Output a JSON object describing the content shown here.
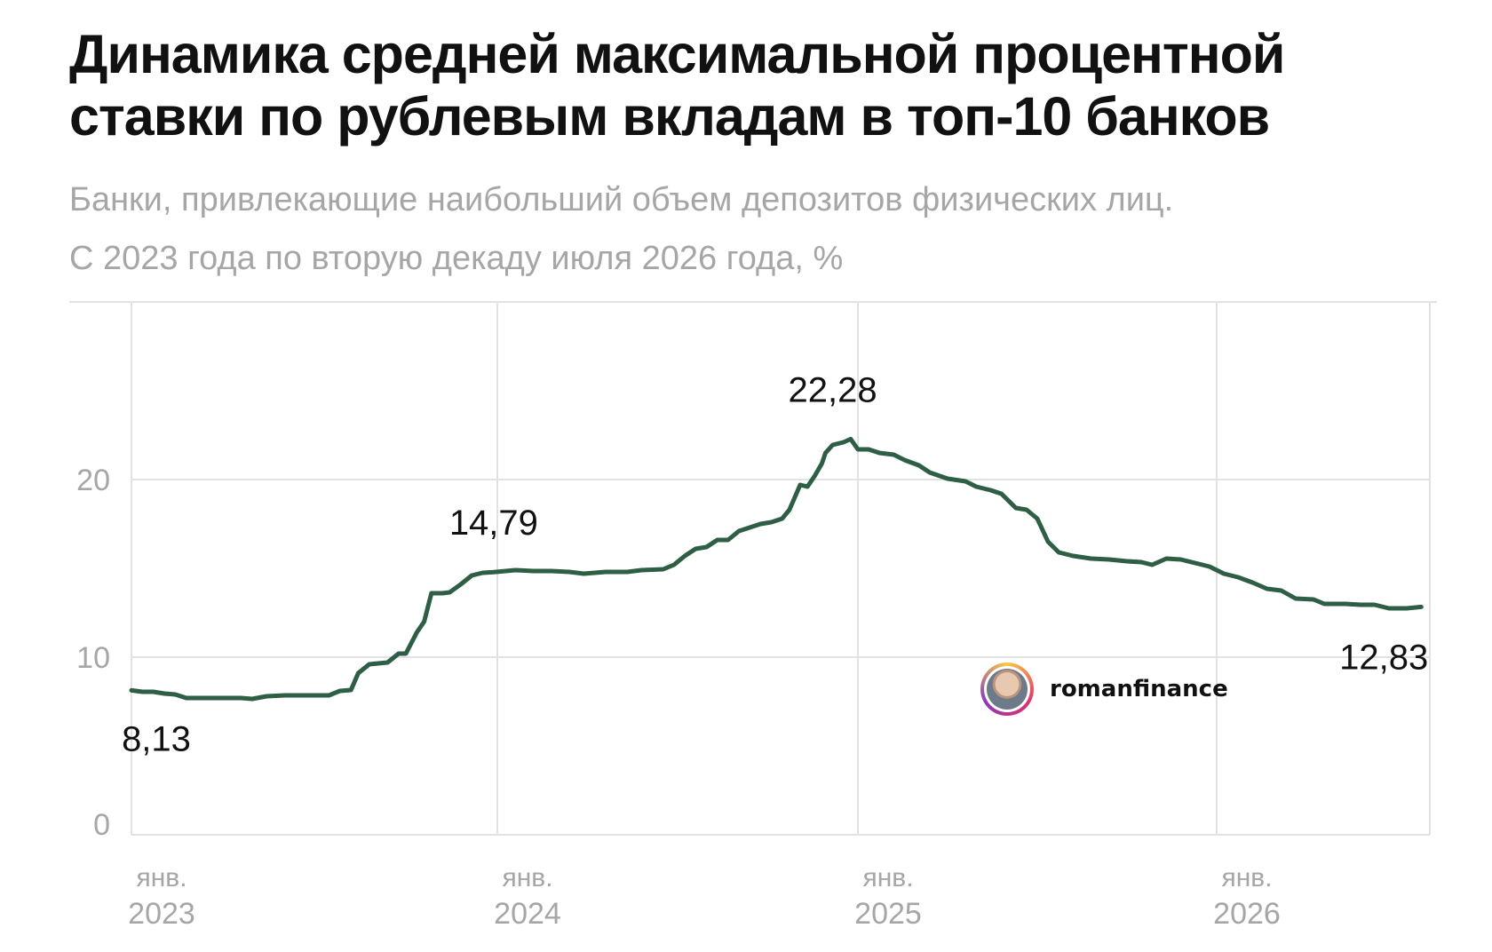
{
  "title": "Динамика средней максимальной процентной ставки по рублевым вкладам в топ-10 банков",
  "subtitle_line1": "Банки, привлекающие наибольший объем депозитов физических лиц.",
  "subtitle_line2": "С 2023 года по вторую декаду июля 2026 года, %",
  "watermark": {
    "text": "romanfinance",
    "icon": "avatar-icon"
  },
  "colors": {
    "line": "#2e5e44",
    "grid": "#e2e2e2",
    "axis_text": "#a6a6a6",
    "label_text": "#111111"
  },
  "chart_data": {
    "type": "line",
    "title": "Динамика средней максимальной процентной ставки по рублевым вкладам в топ-10 банков",
    "xlabel": "",
    "ylabel": "",
    "ylim": [
      0,
      25
    ],
    "yticks": [
      0,
      10,
      20
    ],
    "grid": true,
    "xticks": [
      {
        "x": 2023.0,
        "line1": "янв.",
        "line2": "2023"
      },
      {
        "x": 2024.0,
        "line1": "янв.",
        "line2": "2024"
      },
      {
        "x": 2025.0,
        "line1": "янв.",
        "line2": "2025"
      },
      {
        "x": 2026.0,
        "line1": "янв.",
        "line2": "2026"
      }
    ],
    "xlim": [
      2023.0,
      2026.57
    ],
    "annotations": [
      {
        "x": 2023.0,
        "y": 8.13,
        "text": "8,13",
        "pos": "below"
      },
      {
        "x": 2023.99,
        "y": 14.79,
        "text": "14,79",
        "pos": "above"
      },
      {
        "x": 2024.93,
        "y": 22.28,
        "text": "22,28",
        "pos": "above"
      },
      {
        "x": 2026.57,
        "y": 12.83,
        "text": "12,83",
        "pos": "below-left"
      }
    ],
    "series": [
      {
        "points": [
          [
            2023.0,
            8.13
          ],
          [
            2023.03,
            8.05
          ],
          [
            2023.06,
            8.05
          ],
          [
            2023.09,
            7.95
          ],
          [
            2023.12,
            7.9
          ],
          [
            2023.15,
            7.7
          ],
          [
            2023.2,
            7.7
          ],
          [
            2023.26,
            7.7
          ],
          [
            2023.3,
            7.7
          ],
          [
            2023.33,
            7.65
          ],
          [
            2023.37,
            7.8
          ],
          [
            2023.42,
            7.85
          ],
          [
            2023.48,
            7.85
          ],
          [
            2023.54,
            7.85
          ],
          [
            2023.57,
            8.1
          ],
          [
            2023.6,
            8.15
          ],
          [
            2023.62,
            9.1
          ],
          [
            2023.65,
            9.6
          ],
          [
            2023.7,
            9.7
          ],
          [
            2023.73,
            10.2
          ],
          [
            2023.75,
            10.2
          ],
          [
            2023.78,
            11.4
          ],
          [
            2023.8,
            12.0
          ],
          [
            2023.82,
            13.6
          ],
          [
            2023.85,
            13.6
          ],
          [
            2023.87,
            13.65
          ],
          [
            2023.9,
            14.1
          ],
          [
            2023.93,
            14.6
          ],
          [
            2023.96,
            14.75
          ],
          [
            2023.99,
            14.79
          ],
          [
            2024.05,
            14.9
          ],
          [
            2024.1,
            14.85
          ],
          [
            2024.15,
            14.85
          ],
          [
            2024.2,
            14.8
          ],
          [
            2024.24,
            14.7
          ],
          [
            2024.3,
            14.8
          ],
          [
            2024.36,
            14.8
          ],
          [
            2024.4,
            14.9
          ],
          [
            2024.46,
            14.95
          ],
          [
            2024.49,
            15.2
          ],
          [
            2024.52,
            15.7
          ],
          [
            2024.55,
            16.1
          ],
          [
            2024.58,
            16.2
          ],
          [
            2024.61,
            16.6
          ],
          [
            2024.64,
            16.6
          ],
          [
            2024.67,
            17.1
          ],
          [
            2024.7,
            17.3
          ],
          [
            2024.73,
            17.5
          ],
          [
            2024.76,
            17.6
          ],
          [
            2024.79,
            17.8
          ],
          [
            2024.81,
            18.3
          ],
          [
            2024.84,
            19.7
          ],
          [
            2024.86,
            19.6
          ],
          [
            2024.88,
            20.2
          ],
          [
            2024.9,
            20.9
          ],
          [
            2024.91,
            21.5
          ],
          [
            2024.93,
            21.95
          ],
          [
            2024.96,
            22.1
          ],
          [
            2024.98,
            22.28
          ],
          [
            2025.0,
            21.7
          ],
          [
            2025.03,
            21.7
          ],
          [
            2025.06,
            21.5
          ],
          [
            2025.1,
            21.4
          ],
          [
            2025.13,
            21.1
          ],
          [
            2025.17,
            20.8
          ],
          [
            2025.2,
            20.4
          ],
          [
            2025.25,
            20.05
          ],
          [
            2025.3,
            19.9
          ],
          [
            2025.33,
            19.6
          ],
          [
            2025.37,
            19.4
          ],
          [
            2025.4,
            19.2
          ],
          [
            2025.44,
            18.4
          ],
          [
            2025.47,
            18.3
          ],
          [
            2025.5,
            17.8
          ],
          [
            2025.53,
            16.5
          ],
          [
            2025.56,
            15.9
          ],
          [
            2025.6,
            15.7
          ],
          [
            2025.65,
            15.55
          ],
          [
            2025.7,
            15.5
          ],
          [
            2025.75,
            15.4
          ],
          [
            2025.79,
            15.35
          ],
          [
            2025.82,
            15.2
          ],
          [
            2025.86,
            15.55
          ],
          [
            2025.9,
            15.5
          ],
          [
            2025.94,
            15.3
          ],
          [
            2025.98,
            15.1
          ],
          [
            2026.02,
            14.7
          ],
          [
            2026.06,
            14.5
          ],
          [
            2026.1,
            14.2
          ],
          [
            2026.14,
            13.85
          ],
          [
            2026.18,
            13.75
          ],
          [
            2026.22,
            13.3
          ],
          [
            2026.27,
            13.25
          ],
          [
            2026.3,
            13.0
          ],
          [
            2026.36,
            13.0
          ],
          [
            2026.4,
            12.95
          ],
          [
            2026.44,
            12.95
          ],
          [
            2026.48,
            12.75
          ],
          [
            2026.53,
            12.75
          ],
          [
            2026.57,
            12.83
          ]
        ]
      }
    ]
  }
}
